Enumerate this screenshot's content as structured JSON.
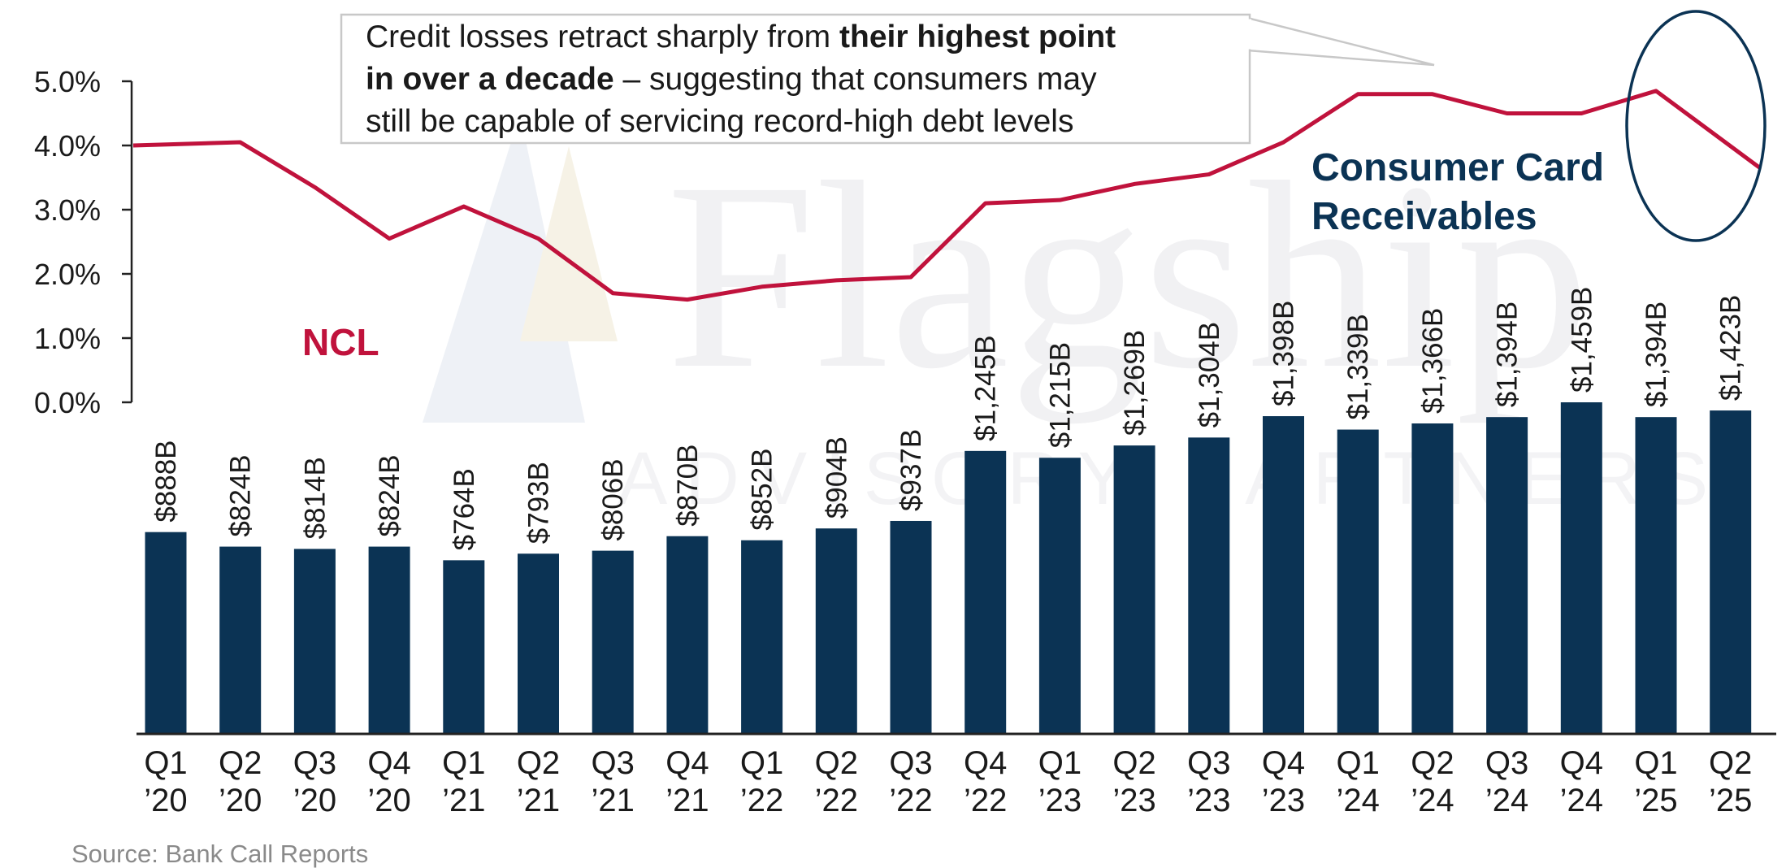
{
  "chart_data": {
    "type": "bar",
    "categories": [
      [
        "Q1",
        "’20"
      ],
      [
        "Q2",
        "’20"
      ],
      [
        "Q3",
        "’20"
      ],
      [
        "Q4",
        "’20"
      ],
      [
        "Q1",
        "’21"
      ],
      [
        "Q2",
        "’21"
      ],
      [
        "Q3",
        "’21"
      ],
      [
        "Q4",
        "’21"
      ],
      [
        "Q1",
        "’22"
      ],
      [
        "Q2",
        "’22"
      ],
      [
        "Q3",
        "’22"
      ],
      [
        "Q4",
        "’22"
      ],
      [
        "Q1",
        "’23"
      ],
      [
        "Q2",
        "’23"
      ],
      [
        "Q3",
        "’23"
      ],
      [
        "Q4",
        "’23"
      ],
      [
        "Q1",
        "’24"
      ],
      [
        "Q2",
        "’24"
      ],
      [
        "Q3",
        "’24"
      ],
      [
        "Q4",
        "’24"
      ],
      [
        "Q1",
        "’25"
      ],
      [
        "Q2",
        "’25"
      ]
    ],
    "series": [
      {
        "name": "Consumer Card Receivables",
        "type": "bar",
        "color": "#0b3354",
        "values": [
          888,
          824,
          814,
          824,
          764,
          793,
          806,
          870,
          852,
          904,
          937,
          1245,
          1215,
          1269,
          1304,
          1398,
          1339,
          1366,
          1394,
          1459,
          1394,
          1423
        ],
        "labels": [
          "$888B",
          "$824B",
          "$814B",
          "$824B",
          "$764B",
          "$793B",
          "$806B",
          "$870B",
          "$852B",
          "$904B",
          "$937B",
          "$1,245B",
          "$1,215B",
          "$1,269B",
          "$1,304B",
          "$1,398B",
          "$1,339B",
          "$1,366B",
          "$1,394B",
          "$1,459B",
          "$1,394B",
          "$1,423B"
        ]
      },
      {
        "name": "NCL",
        "type": "line",
        "color": "#c0123c",
        "values": [
          4.0,
          4.05,
          3.35,
          2.55,
          3.05,
          2.55,
          1.7,
          1.6,
          1.8,
          1.9,
          1.95,
          3.1,
          3.15,
          3.4,
          3.55,
          4.05,
          4.8,
          4.8,
          4.5,
          4.5,
          4.85,
          3.65
        ]
      }
    ],
    "y_left": {
      "ticks": [
        "5.0%",
        "4.0%",
        "3.0%",
        "2.0%",
        "1.0%",
        "0.0%"
      ],
      "tick_values": [
        5,
        4,
        3,
        2,
        1,
        0
      ],
      "range": [
        0,
        5
      ]
    },
    "bar_range": [
      0,
      1459
    ],
    "series_labels": {
      "ncl": "NCL",
      "card_line1": "Consumer Card",
      "card_line2": "Receivables"
    },
    "label_colors": {
      "ncl": "#c0123c",
      "card": "#0b3354"
    },
    "highlight_ellipse_color": "#0b3354",
    "annotation": {
      "line1_normal": "Credit losses retract sharply from ",
      "line1_bold": "their highest point",
      "line2_bold": "in over a decade",
      "line2_normal": " – suggesting that consumers may",
      "line3_normal": "still be capable of servicing record-high debt levels"
    },
    "source": "Source: Bank Call Reports",
    "watermark": {
      "main": "Flagship",
      "sub": "ADVISORY PARTNERS"
    }
  }
}
